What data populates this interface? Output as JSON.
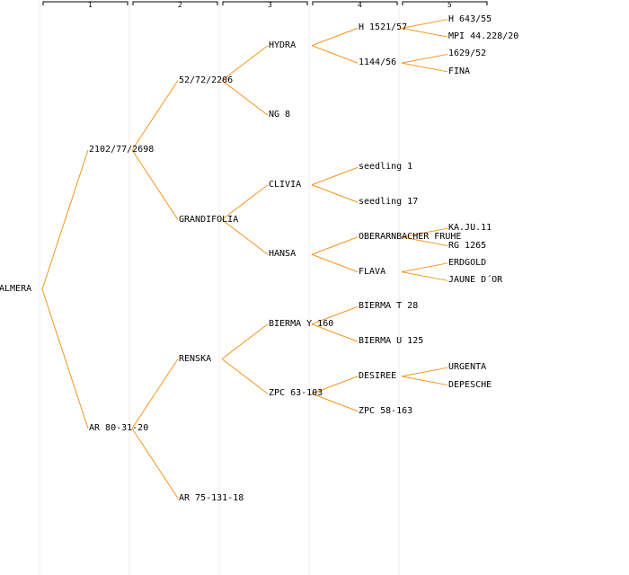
{
  "generations": [
    "1",
    "2",
    "3",
    "4",
    "5"
  ],
  "colors": {
    "edge": "#f7941d",
    "guide": "#eeeeee",
    "header": "#000000",
    "text": "#000000"
  },
  "tree": {
    "name": "ALMERA",
    "parents": [
      {
        "name": "2102/77/2698",
        "parents": [
          {
            "name": "52/72/2206",
            "parents": [
              {
                "name": "HYDRA",
                "parents": [
                  {
                    "name": "H 1521/57",
                    "parents": [
                      {
                        "name": "H 643/55"
                      },
                      {
                        "name": "MPI 44.228/20"
                      }
                    ]
                  },
                  {
                    "name": "1144/56",
                    "parents": [
                      {
                        "name": "1629/52"
                      },
                      {
                        "name": "FINA"
                      }
                    ]
                  }
                ]
              },
              {
                "name": "NG 8"
              }
            ]
          },
          {
            "name": "GRANDIFOLIA",
            "parents": [
              {
                "name": "CLIVIA",
                "parents": [
                  {
                    "name": "seedling 1"
                  },
                  {
                    "name": "seedling 17"
                  }
                ]
              },
              {
                "name": "HANSA",
                "parents": [
                  {
                    "name": "OBERARNBACHER FRUHE",
                    "parents": [
                      {
                        "name": "KA.JU.11"
                      },
                      {
                        "name": "RG 1265"
                      }
                    ]
                  },
                  {
                    "name": "FLAVA",
                    "parents": [
                      {
                        "name": "ERDGOLD"
                      },
                      {
                        "name": "JAUNE D´OR"
                      }
                    ]
                  }
                ]
              }
            ]
          }
        ]
      },
      {
        "name": "AR 80-31-20",
        "parents": [
          {
            "name": "RENSKA",
            "parents": [
              {
                "name": "BIERMA Y 160",
                "parents": [
                  {
                    "name": "BIERMA T 28"
                  },
                  {
                    "name": "BIERMA U 125"
                  }
                ]
              },
              {
                "name": "ZPC 63-103",
                "parents": [
                  {
                    "name": "DESIREE",
                    "parents": [
                      {
                        "name": "URGENTA"
                      },
                      {
                        "name": "DEPESCHE"
                      }
                    ]
                  },
                  {
                    "name": "ZPC 58-163"
                  }
                ]
              }
            ]
          },
          {
            "name": "AR 75-131-18"
          }
        ]
      }
    ]
  }
}
